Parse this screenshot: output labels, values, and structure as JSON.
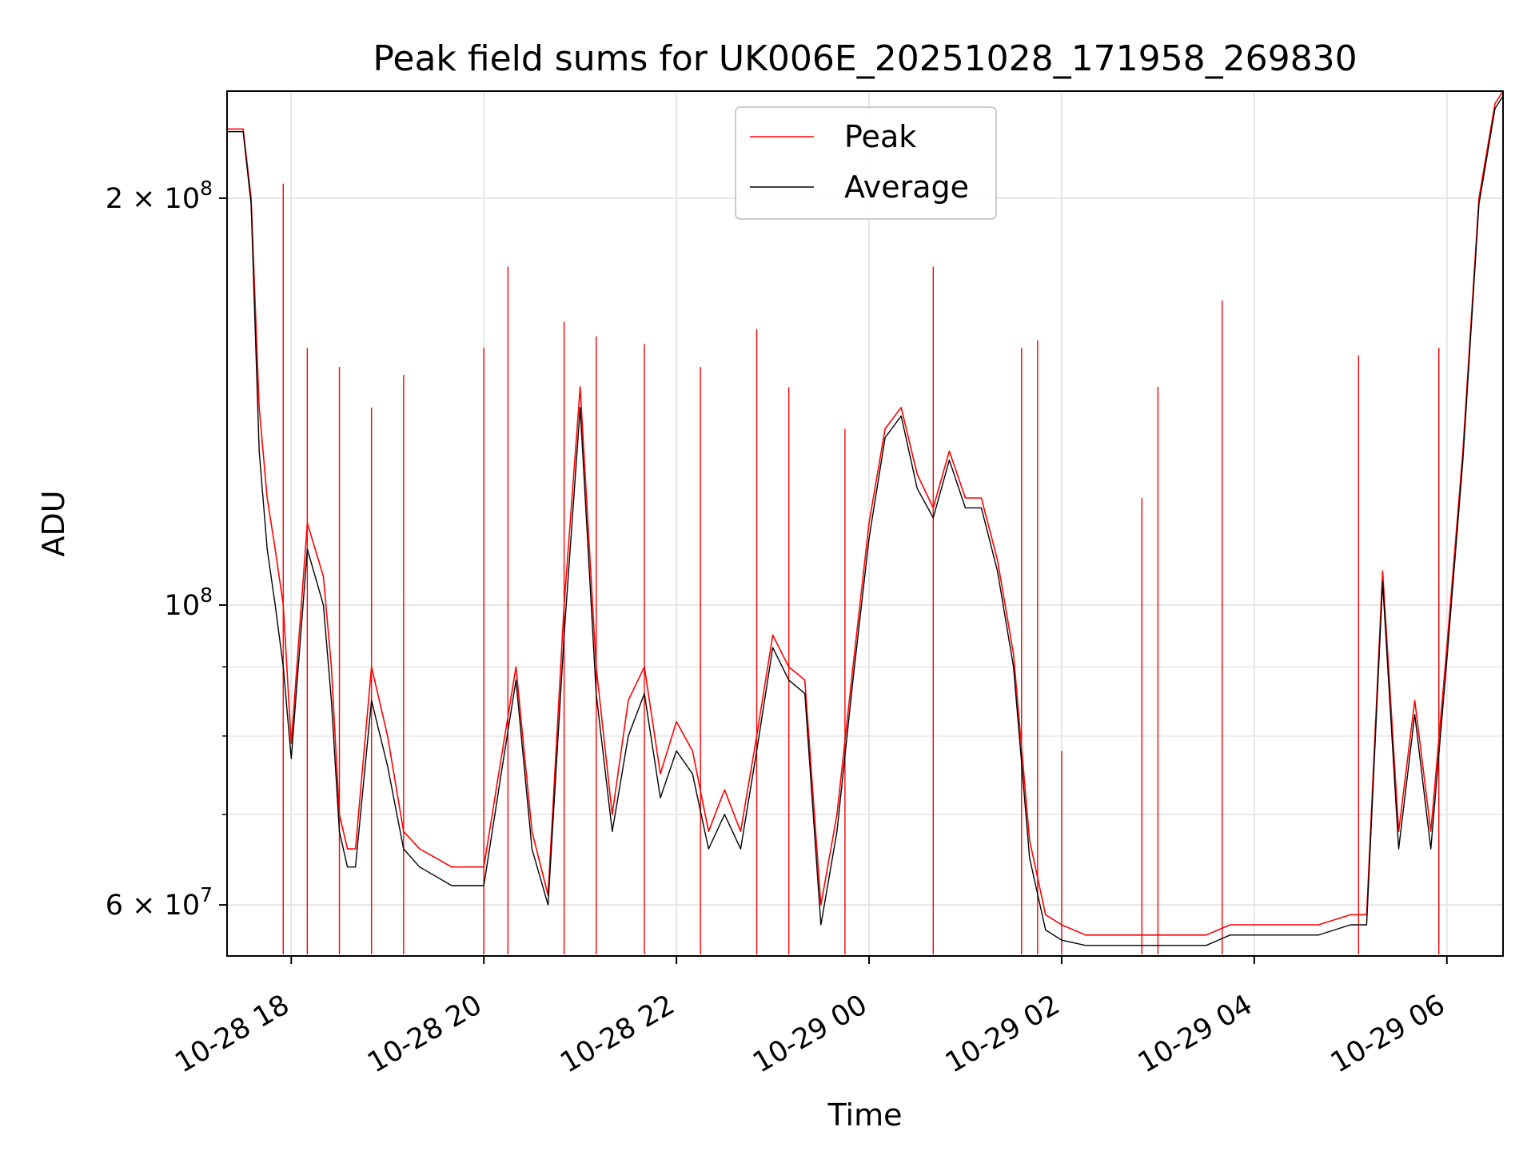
{
  "chart_data": {
    "type": "line",
    "title": "Peak field sums for UK006E_20251028_171958_269830",
    "xlabel": "Time",
    "ylabel": "ADU",
    "yscale": "log",
    "ylim": [
      55000000,
      240000000
    ],
    "xlim": [
      "2025-10-28T17:20",
      "2025-10-29T06:35"
    ],
    "grid": true,
    "legend_position": "top-center",
    "x_ticks": [
      {
        "value": "2025-10-28T18:00",
        "label": "10-28 18"
      },
      {
        "value": "2025-10-28T20:00",
        "label": "10-28 20"
      },
      {
        "value": "2025-10-28T22:00",
        "label": "10-28 22"
      },
      {
        "value": "2025-10-29T00:00",
        "label": "10-29 00"
      },
      {
        "value": "2025-10-29T02:00",
        "label": "10-29 02"
      },
      {
        "value": "2025-10-29T04:00",
        "label": "10-29 04"
      },
      {
        "value": "2025-10-29T06:00",
        "label": "10-29 06"
      }
    ],
    "y_major_ticks": [
      {
        "value": 60000000,
        "base": "6 × 10",
        "exp": "7"
      },
      {
        "value": 100000000,
        "base": "10",
        "exp": "8"
      },
      {
        "value": 200000000,
        "base": "2 × 10",
        "exp": "8"
      }
    ],
    "y_minor_ticks": [
      70000000,
      80000000,
      90000000
    ],
    "x": [
      "2025-10-28T17:20",
      "2025-10-28T17:30",
      "2025-10-28T17:35",
      "2025-10-28T17:40",
      "2025-10-28T17:45",
      "2025-10-28T17:50",
      "2025-10-28T17:55",
      "2025-10-28T18:00",
      "2025-10-28T18:10",
      "2025-10-28T18:20",
      "2025-10-28T18:25",
      "2025-10-28T18:30",
      "2025-10-28T18:35",
      "2025-10-28T18:40",
      "2025-10-28T18:50",
      "2025-10-28T19:00",
      "2025-10-28T19:10",
      "2025-10-28T19:20",
      "2025-10-28T19:30",
      "2025-10-28T19:40",
      "2025-10-28T19:50",
      "2025-10-28T20:00",
      "2025-10-28T20:10",
      "2025-10-28T20:20",
      "2025-10-28T20:30",
      "2025-10-28T20:40",
      "2025-10-28T20:50",
      "2025-10-28T21:00",
      "2025-10-28T21:10",
      "2025-10-28T21:20",
      "2025-10-28T21:30",
      "2025-10-28T21:40",
      "2025-10-28T21:50",
      "2025-10-28T22:00",
      "2025-10-28T22:10",
      "2025-10-28T22:20",
      "2025-10-28T22:30",
      "2025-10-28T22:40",
      "2025-10-28T22:50",
      "2025-10-28T23:00",
      "2025-10-28T23:10",
      "2025-10-28T23:20",
      "2025-10-28T23:30",
      "2025-10-28T23:40",
      "2025-10-28T23:50",
      "2025-10-29T00:00",
      "2025-10-29T00:10",
      "2025-10-29T00:20",
      "2025-10-29T00:30",
      "2025-10-29T00:40",
      "2025-10-29T00:50",
      "2025-10-29T01:00",
      "2025-10-29T01:10",
      "2025-10-29T01:20",
      "2025-10-29T01:30",
      "2025-10-29T01:40",
      "2025-10-29T01:50",
      "2025-10-29T02:00",
      "2025-10-29T02:15",
      "2025-10-29T02:30",
      "2025-10-29T02:45",
      "2025-10-29T03:00",
      "2025-10-29T03:15",
      "2025-10-29T03:30",
      "2025-10-29T03:45",
      "2025-10-29T04:00",
      "2025-10-29T04:20",
      "2025-10-29T04:40",
      "2025-10-29T05:00",
      "2025-10-29T05:10",
      "2025-10-29T05:20",
      "2025-10-29T05:30",
      "2025-10-29T05:40",
      "2025-10-29T05:50",
      "2025-10-29T06:00",
      "2025-10-29T06:10",
      "2025-10-29T06:20",
      "2025-10-29T06:30",
      "2025-10-29T06:35"
    ],
    "series": [
      {
        "name": "Peak",
        "color": "#ff0000",
        "values": [
          225000000,
          225000000,
          200000000,
          140000000,
          120000000,
          110000000,
          100000000,
          79000000,
          115000000,
          105000000,
          90000000,
          70000000,
          66000000,
          66000000,
          90000000,
          80000000,
          68000000,
          66000000,
          65000000,
          64000000,
          64000000,
          64000000,
          76000000,
          90000000,
          68000000,
          61000000,
          100000000,
          145000000,
          90000000,
          70000000,
          85000000,
          90000000,
          75000000,
          82000000,
          78000000,
          68000000,
          73000000,
          68000000,
          80000000,
          95000000,
          90000000,
          88000000,
          60000000,
          70000000,
          90000000,
          115000000,
          135000000,
          140000000,
          125000000,
          118000000,
          130000000,
          120000000,
          120000000,
          108000000,
          92000000,
          67000000,
          59000000,
          58000000,
          57000000,
          57000000,
          57000000,
          57000000,
          57000000,
          57000000,
          58000000,
          58000000,
          58000000,
          58000000,
          59000000,
          59000000,
          106000000,
          68000000,
          85000000,
          68000000,
          93000000,
          130000000,
          200000000,
          235000000,
          240000000
        ]
      },
      {
        "name": "Average",
        "color": "#000000",
        "values": [
          224000000,
          224000000,
          198000000,
          130000000,
          110000000,
          100000000,
          90000000,
          77000000,
          110000000,
          100000000,
          85000000,
          68000000,
          64000000,
          64000000,
          85000000,
          76000000,
          66000000,
          64000000,
          63000000,
          62000000,
          62000000,
          62000000,
          74000000,
          88000000,
          66000000,
          60000000,
          95000000,
          140000000,
          86000000,
          68000000,
          80000000,
          86000000,
          72000000,
          78000000,
          75000000,
          66000000,
          70000000,
          66000000,
          78000000,
          93000000,
          88000000,
          86000000,
          58000000,
          68000000,
          88000000,
          112000000,
          133000000,
          138000000,
          122000000,
          116000000,
          128000000,
          118000000,
          118000000,
          106000000,
          90000000,
          65000000,
          57500000,
          56500000,
          56000000,
          56000000,
          56000000,
          56000000,
          56000000,
          56000000,
          57000000,
          57000000,
          57000000,
          57000000,
          58000000,
          58000000,
          104000000,
          66000000,
          83000000,
          66000000,
          91000000,
          128000000,
          198000000,
          233000000,
          238000000
        ]
      }
    ],
    "spikes": [
      {
        "x": "2025-10-28T17:55",
        "value": 205000000
      },
      {
        "x": "2025-10-28T18:10",
        "value": 155000000
      },
      {
        "x": "2025-10-28T18:30",
        "value": 150000000
      },
      {
        "x": "2025-10-28T18:50",
        "value": 140000000
      },
      {
        "x": "2025-10-28T19:10",
        "value": 148000000
      },
      {
        "x": "2025-10-28T20:00",
        "value": 155000000
      },
      {
        "x": "2025-10-28T20:15",
        "value": 178000000
      },
      {
        "x": "2025-10-28T20:50",
        "value": 162000000
      },
      {
        "x": "2025-10-28T21:10",
        "value": 158000000
      },
      {
        "x": "2025-10-28T21:40",
        "value": 156000000
      },
      {
        "x": "2025-10-28T22:15",
        "value": 150000000
      },
      {
        "x": "2025-10-28T22:50",
        "value": 160000000
      },
      {
        "x": "2025-10-28T23:10",
        "value": 145000000
      },
      {
        "x": "2025-10-28T23:45",
        "value": 135000000
      },
      {
        "x": "2025-10-29T00:40",
        "value": 178000000
      },
      {
        "x": "2025-10-29T01:35",
        "value": 155000000
      },
      {
        "x": "2025-10-29T01:45",
        "value": 157000000
      },
      {
        "x": "2025-10-29T02:00",
        "value": 78000000
      },
      {
        "x": "2025-10-29T02:50",
        "value": 120000000
      },
      {
        "x": "2025-10-29T03:00",
        "value": 145000000
      },
      {
        "x": "2025-10-29T03:40",
        "value": 168000000
      },
      {
        "x": "2025-10-29T05:05",
        "value": 153000000
      },
      {
        "x": "2025-10-29T05:55",
        "value": 155000000
      }
    ]
  }
}
